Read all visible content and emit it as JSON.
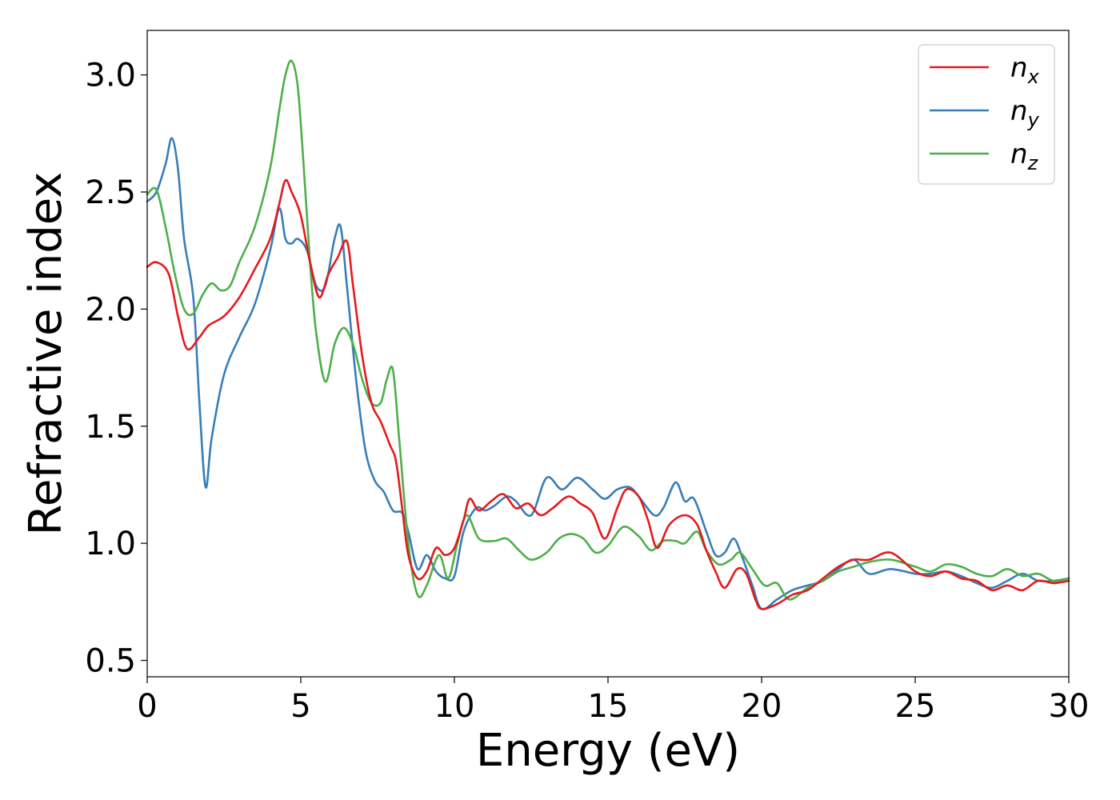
{
  "chart_data": {
    "type": "line",
    "xlabel": "Energy (eV)",
    "ylabel": "Refractive index",
    "xlim": [
      0,
      30
    ],
    "ylim": [
      0.43,
      3.19
    ],
    "xticks": [
      0,
      5,
      10,
      15,
      20,
      25,
      30
    ],
    "xtick_labels": [
      "0",
      "5",
      "10",
      "15",
      "20",
      "25",
      "30"
    ],
    "yticks": [
      0.5,
      1.0,
      1.5,
      2.0,
      2.5,
      3.0
    ],
    "ytick_labels": [
      "0.5",
      "1.0",
      "1.5",
      "2.0",
      "2.5",
      "3.0"
    ],
    "grid": false,
    "legend_position": "top-right",
    "series": [
      {
        "name": "n_x",
        "label_base": "n",
        "label_sub": "x",
        "color": "#e41a1c",
        "points": [
          [
            0,
            2.18
          ],
          [
            0.3,
            2.2
          ],
          [
            0.7,
            2.15
          ],
          [
            1.0,
            1.97
          ],
          [
            1.3,
            1.83
          ],
          [
            1.7,
            1.88
          ],
          [
            2.0,
            1.93
          ],
          [
            2.5,
            1.97
          ],
          [
            3.0,
            2.05
          ],
          [
            3.5,
            2.17
          ],
          [
            4.0,
            2.3
          ],
          [
            4.3,
            2.45
          ],
          [
            4.5,
            2.55
          ],
          [
            4.7,
            2.5
          ],
          [
            5.0,
            2.4
          ],
          [
            5.3,
            2.2
          ],
          [
            5.6,
            2.05
          ],
          [
            5.9,
            2.15
          ],
          [
            6.2,
            2.22
          ],
          [
            6.5,
            2.29
          ],
          [
            6.7,
            2.1
          ],
          [
            7.0,
            1.8
          ],
          [
            7.3,
            1.6
          ],
          [
            7.6,
            1.52
          ],
          [
            7.9,
            1.42
          ],
          [
            8.1,
            1.35
          ],
          [
            8.3,
            1.15
          ],
          [
            8.5,
            0.95
          ],
          [
            8.8,
            0.85
          ],
          [
            9.1,
            0.88
          ],
          [
            9.4,
            0.98
          ],
          [
            9.7,
            0.95
          ],
          [
            10.0,
            0.98
          ],
          [
            10.3,
            1.1
          ],
          [
            10.5,
            1.19
          ],
          [
            10.8,
            1.14
          ],
          [
            11.2,
            1.18
          ],
          [
            11.6,
            1.21
          ],
          [
            12.0,
            1.15
          ],
          [
            12.4,
            1.17
          ],
          [
            12.8,
            1.12
          ],
          [
            13.2,
            1.15
          ],
          [
            13.7,
            1.2
          ],
          [
            14.1,
            1.17
          ],
          [
            14.5,
            1.13
          ],
          [
            14.9,
            1.02
          ],
          [
            15.3,
            1.15
          ],
          [
            15.6,
            1.23
          ],
          [
            16.0,
            1.2
          ],
          [
            16.3,
            1.1
          ],
          [
            16.6,
            0.98
          ],
          [
            17.0,
            1.08
          ],
          [
            17.5,
            1.12
          ],
          [
            17.9,
            1.08
          ],
          [
            18.2,
            0.97
          ],
          [
            18.5,
            0.88
          ],
          [
            18.8,
            0.81
          ],
          [
            19.2,
            0.89
          ],
          [
            19.5,
            0.87
          ],
          [
            19.8,
            0.76
          ],
          [
            20.0,
            0.72
          ],
          [
            20.5,
            0.74
          ],
          [
            21.0,
            0.78
          ],
          [
            21.5,
            0.8
          ],
          [
            22.0,
            0.85
          ],
          [
            22.5,
            0.9
          ],
          [
            23.0,
            0.93
          ],
          [
            23.5,
            0.93
          ],
          [
            24.2,
            0.96
          ],
          [
            25.0,
            0.88
          ],
          [
            25.5,
            0.86
          ],
          [
            26.0,
            0.88
          ],
          [
            26.5,
            0.85
          ],
          [
            27.0,
            0.84
          ],
          [
            27.5,
            0.8
          ],
          [
            28.0,
            0.82
          ],
          [
            28.5,
            0.8
          ],
          [
            29.0,
            0.84
          ],
          [
            29.5,
            0.83
          ],
          [
            30.0,
            0.84
          ]
        ]
      },
      {
        "name": "n_y",
        "label_base": "n",
        "label_sub": "y",
        "color": "#377eb8",
        "points": [
          [
            0,
            2.46
          ],
          [
            0.3,
            2.5
          ],
          [
            0.6,
            2.62
          ],
          [
            0.8,
            2.73
          ],
          [
            1.0,
            2.6
          ],
          [
            1.2,
            2.3
          ],
          [
            1.5,
            2.05
          ],
          [
            1.7,
            1.6
          ],
          [
            1.9,
            1.24
          ],
          [
            2.1,
            1.45
          ],
          [
            2.5,
            1.72
          ],
          [
            3.0,
            1.88
          ],
          [
            3.5,
            2.02
          ],
          [
            4.0,
            2.25
          ],
          [
            4.3,
            2.43
          ],
          [
            4.5,
            2.3
          ],
          [
            4.7,
            2.28
          ],
          [
            4.9,
            2.3
          ],
          [
            5.2,
            2.25
          ],
          [
            5.5,
            2.1
          ],
          [
            5.8,
            2.1
          ],
          [
            6.1,
            2.3
          ],
          [
            6.3,
            2.35
          ],
          [
            6.5,
            2.1
          ],
          [
            6.8,
            1.7
          ],
          [
            7.1,
            1.4
          ],
          [
            7.4,
            1.27
          ],
          [
            7.7,
            1.22
          ],
          [
            8.0,
            1.14
          ],
          [
            8.3,
            1.13
          ],
          [
            8.5,
            1.05
          ],
          [
            8.8,
            0.89
          ],
          [
            9.1,
            0.95
          ],
          [
            9.4,
            0.88
          ],
          [
            9.7,
            0.85
          ],
          [
            10.0,
            0.86
          ],
          [
            10.3,
            1.05
          ],
          [
            10.7,
            1.15
          ],
          [
            11.0,
            1.14
          ],
          [
            11.3,
            1.16
          ],
          [
            11.7,
            1.2
          ],
          [
            12.0,
            1.18
          ],
          [
            12.5,
            1.12
          ],
          [
            13.0,
            1.28
          ],
          [
            13.5,
            1.23
          ],
          [
            14.0,
            1.28
          ],
          [
            14.5,
            1.23
          ],
          [
            14.9,
            1.19
          ],
          [
            15.3,
            1.23
          ],
          [
            15.7,
            1.24
          ],
          [
            16.0,
            1.2
          ],
          [
            16.5,
            1.12
          ],
          [
            16.8,
            1.15
          ],
          [
            17.2,
            1.26
          ],
          [
            17.5,
            1.18
          ],
          [
            17.8,
            1.19
          ],
          [
            18.2,
            1.05
          ],
          [
            18.5,
            0.95
          ],
          [
            18.8,
            0.96
          ],
          [
            19.1,
            1.02
          ],
          [
            19.4,
            0.93
          ],
          [
            19.7,
            0.82
          ],
          [
            20.0,
            0.72
          ],
          [
            20.5,
            0.76
          ],
          [
            21.0,
            0.8
          ],
          [
            21.5,
            0.82
          ],
          [
            22.0,
            0.84
          ],
          [
            22.5,
            0.89
          ],
          [
            23.0,
            0.93
          ],
          [
            23.5,
            0.87
          ],
          [
            24.2,
            0.89
          ],
          [
            25.0,
            0.87
          ],
          [
            25.5,
            0.87
          ],
          [
            26.0,
            0.88
          ],
          [
            26.5,
            0.86
          ],
          [
            27.0,
            0.83
          ],
          [
            27.5,
            0.81
          ],
          [
            28.0,
            0.84
          ],
          [
            28.5,
            0.87
          ],
          [
            29.0,
            0.84
          ],
          [
            29.5,
            0.84
          ],
          [
            30.0,
            0.85
          ]
        ]
      },
      {
        "name": "n_z",
        "label_base": "n",
        "label_sub": "z",
        "color": "#4daf4a",
        "points": [
          [
            0,
            2.49
          ],
          [
            0.3,
            2.51
          ],
          [
            0.6,
            2.35
          ],
          [
            0.9,
            2.15
          ],
          [
            1.2,
            2.0
          ],
          [
            1.5,
            1.98
          ],
          [
            1.8,
            2.06
          ],
          [
            2.1,
            2.11
          ],
          [
            2.4,
            2.08
          ],
          [
            2.7,
            2.1
          ],
          [
            3.0,
            2.2
          ],
          [
            3.5,
            2.35
          ],
          [
            4.0,
            2.6
          ],
          [
            4.3,
            2.85
          ],
          [
            4.5,
            3.0
          ],
          [
            4.7,
            3.06
          ],
          [
            4.9,
            2.95
          ],
          [
            5.1,
            2.6
          ],
          [
            5.3,
            2.2
          ],
          [
            5.5,
            1.9
          ],
          [
            5.8,
            1.69
          ],
          [
            6.1,
            1.85
          ],
          [
            6.4,
            1.92
          ],
          [
            6.7,
            1.85
          ],
          [
            7.0,
            1.7
          ],
          [
            7.3,
            1.6
          ],
          [
            7.6,
            1.6
          ],
          [
            7.8,
            1.7
          ],
          [
            8.0,
            1.74
          ],
          [
            8.2,
            1.45
          ],
          [
            8.5,
            1.0
          ],
          [
            8.8,
            0.78
          ],
          [
            9.1,
            0.82
          ],
          [
            9.5,
            0.95
          ],
          [
            9.8,
            0.85
          ],
          [
            10.1,
            1.0
          ],
          [
            10.4,
            1.12
          ],
          [
            10.8,
            1.02
          ],
          [
            11.3,
            1.01
          ],
          [
            11.7,
            1.02
          ],
          [
            12.1,
            0.97
          ],
          [
            12.5,
            0.93
          ],
          [
            13.0,
            0.96
          ],
          [
            13.4,
            1.02
          ],
          [
            13.8,
            1.04
          ],
          [
            14.2,
            1.02
          ],
          [
            14.6,
            0.96
          ],
          [
            15.0,
            0.99
          ],
          [
            15.5,
            1.07
          ],
          [
            16.0,
            1.03
          ],
          [
            16.4,
            0.97
          ],
          [
            16.8,
            1.01
          ],
          [
            17.2,
            1.01
          ],
          [
            17.5,
            1.0
          ],
          [
            17.9,
            1.05
          ],
          [
            18.2,
            0.97
          ],
          [
            18.6,
            0.91
          ],
          [
            19.0,
            0.93
          ],
          [
            19.3,
            0.96
          ],
          [
            19.7,
            0.89
          ],
          [
            20.1,
            0.82
          ],
          [
            20.5,
            0.83
          ],
          [
            20.9,
            0.76
          ],
          [
            21.5,
            0.81
          ],
          [
            22.0,
            0.84
          ],
          [
            22.5,
            0.88
          ],
          [
            23.0,
            0.9
          ],
          [
            23.5,
            0.92
          ],
          [
            24.2,
            0.93
          ],
          [
            25.0,
            0.9
          ],
          [
            25.5,
            0.88
          ],
          [
            26.0,
            0.91
          ],
          [
            26.5,
            0.9
          ],
          [
            27.0,
            0.87
          ],
          [
            27.5,
            0.86
          ],
          [
            28.0,
            0.89
          ],
          [
            28.5,
            0.86
          ],
          [
            29.0,
            0.87
          ],
          [
            29.5,
            0.84
          ],
          [
            30.0,
            0.85
          ]
        ]
      }
    ]
  }
}
